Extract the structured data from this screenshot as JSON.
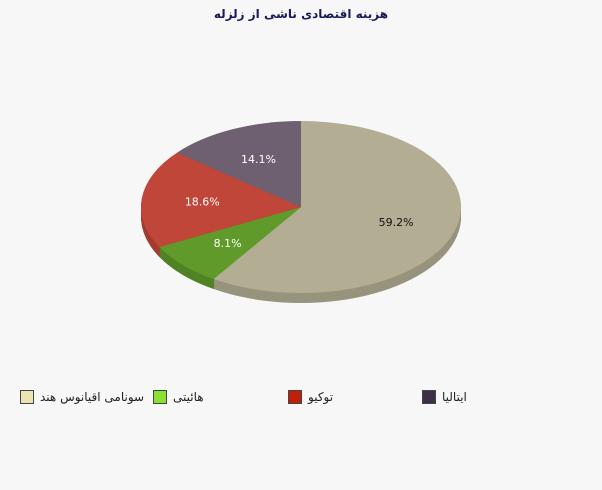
{
  "chart_data": {
    "type": "pie",
    "title": "هزینه اقتصادی ناشی از زلزله",
    "slices": [
      {
        "name": "سونامی اقیانوس هند",
        "value": 59.2,
        "label": "59.2%",
        "color": "#b2ad93",
        "legend_color": "#ece3b4"
      },
      {
        "name": "هائیتی",
        "value": 8.1,
        "label": "8.1%",
        "color": "#5f9a2a",
        "legend_color": "#8ae234"
      },
      {
        "name": "توکیو",
        "value": 18.6,
        "label": "18.6%",
        "color": "#c0463a",
        "legend_color": "#c0200a"
      },
      {
        "name": "ایتالیا",
        "value": 14.1,
        "label": "14.1%",
        "color": "#6e6070",
        "legend_color": "#3d2f45"
      }
    ],
    "legend_placement": "bottom"
  }
}
